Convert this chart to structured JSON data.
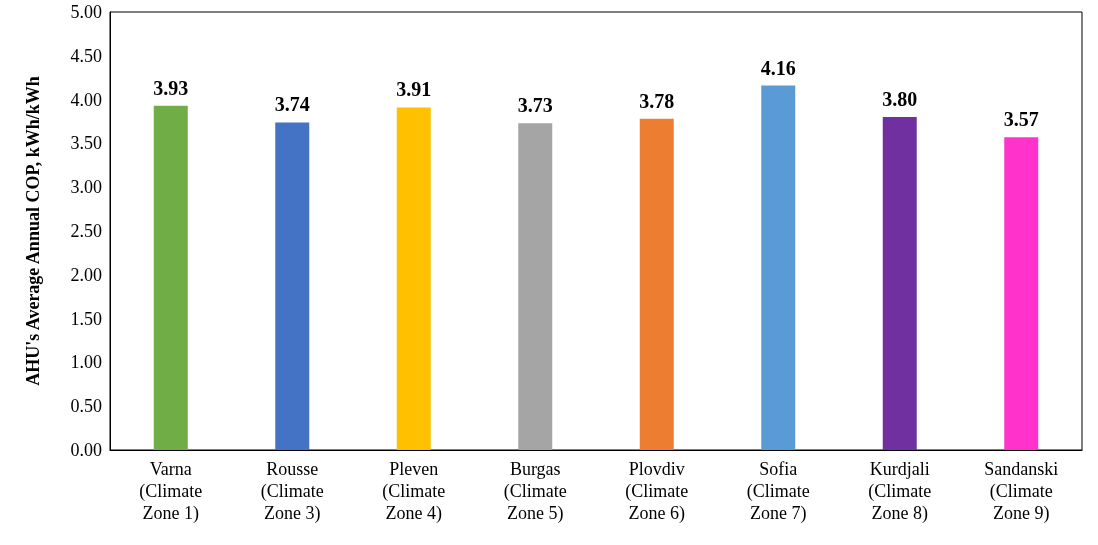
{
  "chart_data": {
    "type": "bar",
    "categories": [
      "Varna\n(Climate\nZone 1)",
      "Rousse\n(Climate\nZone 3)",
      "Pleven\n(Climate\nZone 4)",
      "Burgas\n(Climate\nZone 5)",
      "Plovdiv\n(Climate\nZone 6)",
      "Sofia\n(Climate\nZone 7)",
      "Kurdjali\n(Climate\nZone 8)",
      "Sandanski\n(Climate\nZone 9)"
    ],
    "values": [
      3.93,
      3.74,
      3.91,
      3.73,
      3.78,
      4.16,
      3.8,
      3.57
    ],
    "value_labels": [
      "3.93",
      "3.74",
      "3.91",
      "3.73",
      "3.78",
      "4.16",
      "3.80",
      "3.57"
    ],
    "colors": [
      "#70ad47",
      "#4472c4",
      "#ffc000",
      "#a5a5a5",
      "#ed7d31",
      "#5b9bd5",
      "#7030a0",
      "#ff33cc"
    ],
    "ylabel": "AHU's Average Annual COP, kWh/kWh",
    "ylim": [
      0,
      5
    ],
    "yticks": [
      {
        "value": 0,
        "label": "0.00"
      },
      {
        "value": 0.5,
        "label": "0.50"
      },
      {
        "value": 1,
        "label": "1.00"
      },
      {
        "value": 1.5,
        "label": "1.50"
      },
      {
        "value": 2,
        "label": "2.00"
      },
      {
        "value": 2.5,
        "label": "2.50"
      },
      {
        "value": 3,
        "label": "3.00"
      },
      {
        "value": 3.5,
        "label": "3.50"
      },
      {
        "value": 4,
        "label": "4.00"
      },
      {
        "value": 4.5,
        "label": "4.50"
      },
      {
        "value": 5,
        "label": "5.00"
      }
    ],
    "grid": false
  }
}
